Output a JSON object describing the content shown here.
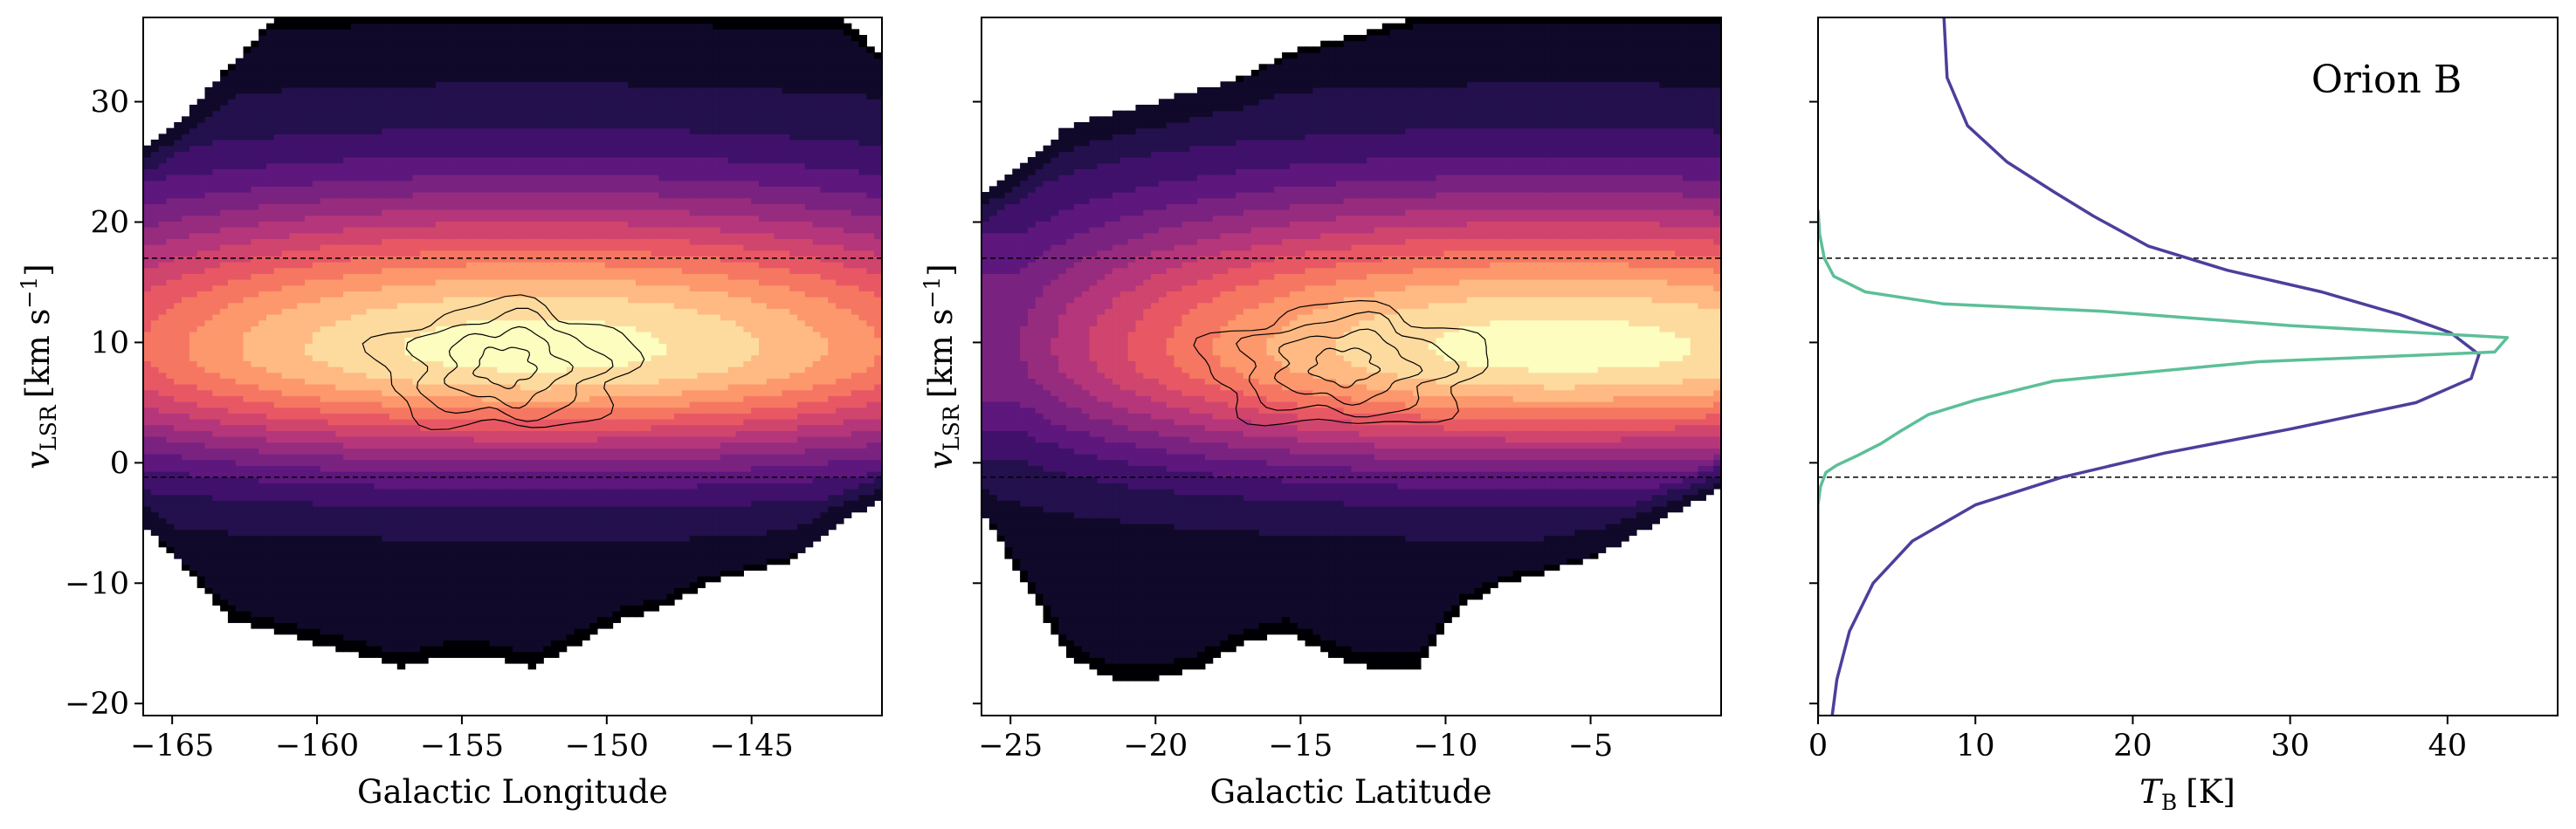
{
  "chart_data": [
    {
      "type": "heatmap",
      "panel": "longitude-velocity",
      "xlabel": "Galactic Longitude",
      "ylabel_main": "v",
      "ylabel_sub": "LSR",
      "ylabel_unit": "[km s",
      "ylabel_exp": "−1",
      "ylabel_close": "]",
      "xlim": [
        -166,
        -140.5
      ],
      "ylim": [
        -21,
        37
      ],
      "xticks": [
        -165,
        -160,
        -155,
        -150,
        -145
      ],
      "xtick_labels": [
        "−165",
        "−160",
        "−155",
        "−150",
        "−145"
      ],
      "yticks": [
        -20,
        -10,
        0,
        10,
        20,
        30
      ],
      "ytick_labels": [
        "−20",
        "−10",
        "0",
        "10",
        "20",
        "30"
      ],
      "hlines": [
        17,
        -1.2
      ],
      "colormap": "magma",
      "levels": 14,
      "x_range_cols": [
        -166.0,
        -164.5,
        -163.0,
        -161.5,
        -160.0,
        -158.5,
        -157.0,
        -155.5,
        -154.0,
        -152.5,
        -151.0,
        -149.5,
        -148.0,
        -146.5,
        -145.0,
        -143.5,
        -142.0,
        -140.5
      ],
      "v_top": [
        26,
        29,
        33,
        37,
        37,
        37,
        37,
        37,
        37,
        37,
        37,
        37,
        37,
        37,
        37,
        37,
        37,
        34
      ],
      "v_bottom": [
        -5,
        -9,
        -13,
        -14,
        -15,
        -16,
        -17,
        -16,
        -16,
        -17,
        -15,
        -13,
        -12,
        -10,
        -9,
        -8,
        -5,
        -3
      ],
      "peak_velocity": 9.5,
      "peak_longitude": -152.5,
      "contour_center": [
        -153.5,
        8
      ],
      "contour_level": 1
    },
    {
      "type": "heatmap",
      "panel": "latitude-velocity",
      "xlabel": "Galactic Latitude",
      "ylabel_main": "v",
      "ylabel_sub": "LSR",
      "ylabel_unit": "[km s",
      "ylabel_exp": "−1",
      "ylabel_close": "]",
      "xlim": [
        -26,
        -0.5
      ],
      "ylim": [
        -21,
        37
      ],
      "xticks": [
        -25,
        -20,
        -15,
        -10,
        -5
      ],
      "xtick_labels": [
        "−25",
        "−20",
        "−15",
        "−10",
        "−5"
      ],
      "hlines": [
        17,
        -1.2
      ],
      "colormap": "magma",
      "levels": 14,
      "x_range_cols": [
        -26.0,
        -24.5,
        -23.0,
        -21.5,
        -20.0,
        -18.5,
        -17.0,
        -15.5,
        -14.0,
        -12.5,
        -11.0,
        -9.5,
        -8.0,
        -6.5,
        -5.0,
        -3.5,
        -2.0,
        -0.5
      ],
      "v_top": [
        22,
        25,
        28,
        29,
        30,
        31,
        32,
        34,
        35,
        36,
        37,
        37,
        37,
        37,
        37,
        37,
        37,
        37
      ],
      "v_bottom": [
        -4,
        -10,
        -16,
        -18,
        -18,
        -17,
        -15,
        -14,
        -16,
        -17,
        -17,
        -12,
        -10,
        -9,
        -8,
        -6,
        -4,
        -2
      ],
      "peak_velocity": 9.5,
      "peak_latitude": -6,
      "contour_center": [
        -13.5,
        8
      ],
      "contour_level": 1
    },
    {
      "type": "line",
      "panel": "spectrum",
      "xlabel_main": "T",
      "xlabel_sub": "B",
      "xlabel_unit": "[K]",
      "annotation": "Orion B",
      "xlim": [
        0,
        47
      ],
      "ylim": [
        -21,
        37
      ],
      "xticks": [
        0,
        10,
        20,
        30,
        40
      ],
      "xtick_labels": [
        "0",
        "10",
        "20",
        "30",
        "40"
      ],
      "hlines": [
        17,
        -1.2
      ],
      "series": [
        {
          "color": "#4b3f9c",
          "points": [
            [
              8,
              37
            ],
            [
              8.2,
              32
            ],
            [
              9.5,
              28
            ],
            [
              12,
              25
            ],
            [
              15,
              22.5
            ],
            [
              17.5,
              20.5
            ],
            [
              21,
              18
            ],
            [
              26,
              16
            ],
            [
              32,
              14.2
            ],
            [
              37,
              12.3
            ],
            [
              40.2,
              10.8
            ],
            [
              42,
              9
            ],
            [
              41.5,
              7
            ],
            [
              38,
              5
            ],
            [
              30,
              2.8
            ],
            [
              22,
              0.8
            ],
            [
              15.5,
              -1.2
            ],
            [
              10,
              -3.5
            ],
            [
              6,
              -6.5
            ],
            [
              3.5,
              -10
            ],
            [
              2,
              -14
            ],
            [
              1.2,
              -18
            ],
            [
              0.9,
              -21
            ]
          ]
        },
        {
          "color": "#5cbf98",
          "points": [
            [
              0,
              21
            ],
            [
              0.1,
              19
            ],
            [
              0.4,
              17
            ],
            [
              1,
              15.5
            ],
            [
              3,
              14.2
            ],
            [
              8,
              13.2
            ],
            [
              18,
              12.6
            ],
            [
              30,
              11.4
            ],
            [
              43.8,
              10.4
            ],
            [
              43,
              9.2
            ],
            [
              28,
              8.4
            ],
            [
              15,
              6.8
            ],
            [
              10,
              5.2
            ],
            [
              7,
              4
            ],
            [
              5.2,
              2.6
            ],
            [
              4,
              1.6
            ],
            [
              2.5,
              0.6
            ],
            [
              1.2,
              -0.2
            ],
            [
              0.5,
              -0.8
            ],
            [
              0.15,
              -2
            ],
            [
              0,
              -3.5
            ],
            [
              0,
              -21
            ]
          ]
        }
      ]
    }
  ]
}
